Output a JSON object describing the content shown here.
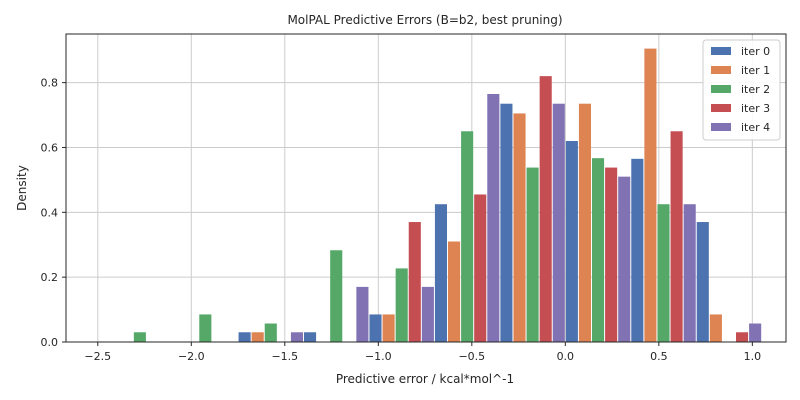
{
  "chart_data": {
    "type": "bar",
    "title": "MolPAL Predictive Errors (B=b2, best pruning)",
    "xlabel": "Predictive error / kcal*mol^-1",
    "ylabel": "Density",
    "xlim": [
      -2.67,
      1.18
    ],
    "ylim": [
      0,
      0.95
    ],
    "xticks": [
      -2.5,
      -2.0,
      -1.5,
      -1.0,
      -0.5,
      0.0,
      0.5,
      1.0
    ],
    "xtick_labels": [
      "−2.5",
      "−2.0",
      "−1.5",
      "−1.0",
      "−0.5",
      "0.0",
      "0.5",
      "1.0"
    ],
    "yticks": [
      0.0,
      0.2,
      0.4,
      0.6,
      0.8
    ],
    "ytick_labels": [
      "0.0",
      "0.2",
      "0.4",
      "0.6",
      "0.8"
    ],
    "grid": true,
    "legend_position": "top-right",
    "bin_edges": [
      -2.45,
      -2.1,
      -1.75,
      -1.4,
      -1.05,
      -0.7,
      -0.35,
      0.0,
      0.35,
      0.7,
      1.05
    ],
    "series": [
      {
        "name": "iter 0",
        "color": "#4c72b0",
        "values": [
          0,
          0,
          0.03,
          0.03,
          0.085,
          0.425,
          0.735,
          0.62,
          0.565,
          0.37
        ]
      },
      {
        "name": "iter 1",
        "color": "#dd8452",
        "values": [
          0,
          0,
          0.03,
          0,
          0.085,
          0.31,
          0.705,
          0.735,
          0.905,
          0.085
        ]
      },
      {
        "name": "iter 2",
        "color": "#55a868",
        "values": [
          0.03,
          0.085,
          0.057,
          0.283,
          0.227,
          0.65,
          0.538,
          0.567,
          0.425,
          0
        ]
      },
      {
        "name": "iter 3",
        "color": "#c44e52",
        "values": [
          0,
          0,
          0,
          0,
          0.37,
          0.455,
          0.82,
          0.538,
          0.65,
          0.03
        ]
      },
      {
        "name": "iter 4",
        "color": "#8172b3",
        "values": [
          0,
          0,
          0.03,
          0.17,
          0.17,
          0.765,
          0.735,
          0.51,
          0.425,
          0.057
        ]
      }
    ]
  }
}
